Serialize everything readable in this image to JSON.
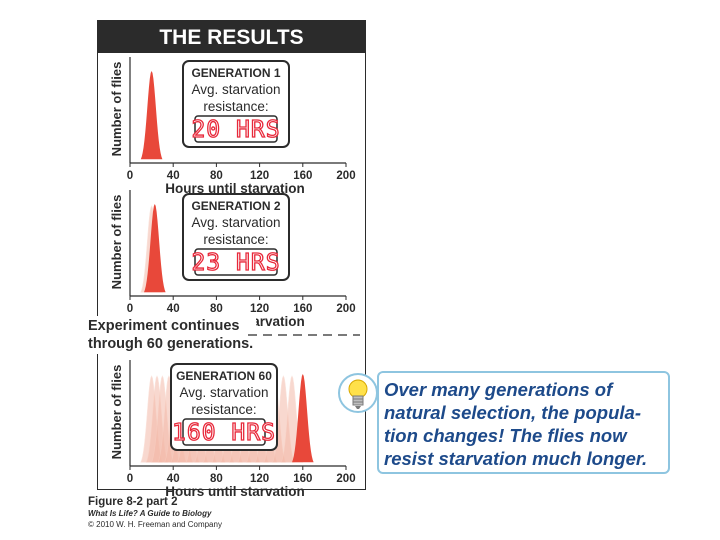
{
  "header": {
    "title": "THE RESULTS"
  },
  "chart_data": [
    {
      "type": "area",
      "ylabel": "Number of flies",
      "xlabel": "Hours until starvation",
      "xticks": [
        "0",
        "40",
        "80",
        "120",
        "160",
        "200"
      ],
      "xlim": [
        0,
        200
      ],
      "inset": {
        "generation": "GENERATION 1",
        "line1": "Avg. starvation",
        "line2": "resistance:",
        "value": "20 HRS"
      },
      "avg_hours": 20,
      "ghost_peaks": []
    },
    {
      "type": "area",
      "ylabel": "Number of flies",
      "xlabel": "Hours until starvation",
      "xticks": [
        "0",
        "40",
        "80",
        "120",
        "160",
        "200"
      ],
      "xlim": [
        0,
        200
      ],
      "inset": {
        "generation": "GENERATION 2",
        "line1": "Avg. starvation",
        "line2": "resistance:",
        "value": "23 HRS"
      },
      "avg_hours": 23,
      "ghost_peaks": [
        20
      ]
    },
    {
      "type": "area",
      "ylabel": "Number of flies",
      "xlabel": "Hours until starvation",
      "xticks": [
        "0",
        "40",
        "80",
        "120",
        "160",
        "200"
      ],
      "xlim": [
        0,
        200
      ],
      "inset": {
        "generation": "GENERATION 60",
        "line1": "Avg. starvation",
        "line2": "resistance:",
        "value": "160 HRS"
      },
      "avg_hours": 160,
      "ghost_peaks": [
        20,
        25,
        30,
        36,
        42,
        48,
        54,
        62,
        70,
        78,
        86,
        94,
        102,
        110,
        118,
        126,
        134,
        142,
        150
      ]
    }
  ],
  "continue_note": {
    "line1": "Experiment continues",
    "line2": "through 60 generations."
  },
  "callout": {
    "text": "Over many generations of natural selection, the popula-tion changes! The flies now resist starvation much longer."
  },
  "caption": {
    "figure": "Figure 8-2 part 2",
    "book": "What Is Life? A Guide to Biology",
    "copyright": "© 2010 W. H. Freeman and Company"
  },
  "colors": {
    "peak": "#e8483a",
    "ghost": "#f4b9a8",
    "led": "#e8283a",
    "dark": "#2b2b2b",
    "callout_text": "#1d4a8a",
    "callout_border": "#8ec5e0"
  }
}
